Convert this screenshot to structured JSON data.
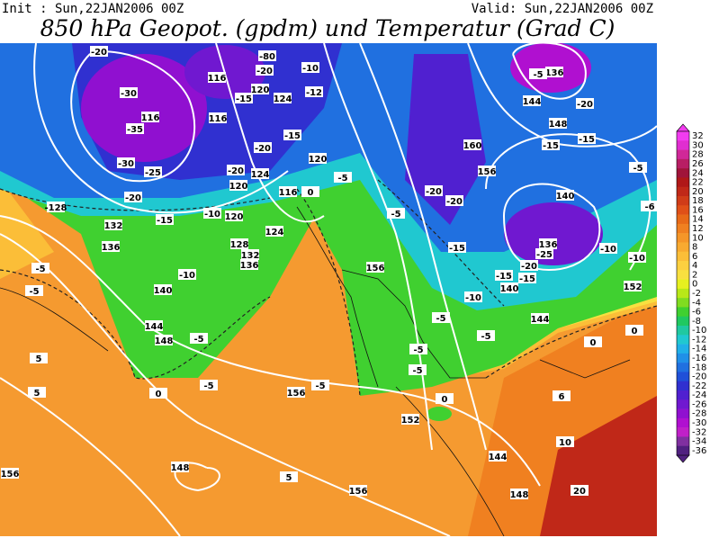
{
  "header": {
    "init": "Init : Sun,22JAN2006 00Z",
    "valid": "Valid: Sun,22JAN2006 00Z",
    "title": "850 hPa Geopot. (gpdm) und Temperatur (Grad C)"
  },
  "colorbar": [
    {
      "value": 32,
      "color": "#f23cf0"
    },
    {
      "value": 30,
      "color": "#e02ed0"
    },
    {
      "value": 28,
      "color": "#d02898"
    },
    {
      "value": 26,
      "color": "#b81e64"
    },
    {
      "value": 24,
      "color": "#a0143a"
    },
    {
      "value": 22,
      "color": "#b01818"
    },
    {
      "value": 20,
      "color": "#c02818"
    },
    {
      "value": 18,
      "color": "#d03c18"
    },
    {
      "value": 16,
      "color": "#e05018"
    },
    {
      "value": 14,
      "color": "#e86a18"
    },
    {
      "value": 12,
      "color": "#f08020"
    },
    {
      "value": 10,
      "color": "#f59628"
    },
    {
      "value": 8,
      "color": "#f8aa30"
    },
    {
      "value": 6,
      "color": "#fbbe38"
    },
    {
      "value": 4,
      "color": "#fcd040"
    },
    {
      "value": 2,
      "color": "#f8e040"
    },
    {
      "value": 0,
      "color": "#e6f020"
    },
    {
      "value": -2,
      "color": "#b8e818"
    },
    {
      "value": -4,
      "color": "#80dc20"
    },
    {
      "value": -6,
      "color": "#40d030"
    },
    {
      "value": -8,
      "color": "#20c860"
    },
    {
      "value": -10,
      "color": "#20c8a0"
    },
    {
      "value": -12,
      "color": "#20c8d0"
    },
    {
      "value": -14,
      "color": "#20b0e8"
    },
    {
      "value": -16,
      "color": "#2090e8"
    },
    {
      "value": -18,
      "color": "#2070e0"
    },
    {
      "value": -20,
      "color": "#2050d8"
    },
    {
      "value": -22,
      "color": "#3030d0"
    },
    {
      "value": -24,
      "color": "#5020d0"
    },
    {
      "value": -26,
      "color": "#7018d0"
    },
    {
      "value": -28,
      "color": "#9010d0"
    },
    {
      "value": -30,
      "color": "#b010d0"
    },
    {
      "value": -32,
      "color": "#c020c8"
    },
    {
      "value": -34,
      "color": "#8030a0"
    },
    {
      "value": -36,
      "color": "#502080"
    }
  ],
  "map": {
    "labels": [
      "-20",
      "-30",
      "116",
      "-35",
      "-30",
      "-25",
      "-20",
      "-128",
      "132",
      "-15",
      "136",
      "-5",
      "-5",
      "-10",
      "140",
      "144",
      "148",
      "-5",
      "5",
      "5",
      "0",
      "-5",
      "156",
      "-5",
      "156",
      "148",
      "5",
      "156",
      "148",
      "144",
      "152",
      "20",
      "10",
      "6",
      "0",
      "0",
      "152",
      "-10",
      "-10",
      "136",
      "-25",
      "-20",
      "140",
      "-15",
      "-10",
      "140",
      "-15",
      "148",
      "144",
      "-20",
      "136",
      "-5",
      "160",
      "156",
      "-20",
      "-20",
      "-15",
      "-5",
      "156",
      "-5",
      "-5",
      "144",
      "-5",
      "-5",
      "0",
      "-80",
      "-20",
      "-10",
      "-12",
      "116",
      "120",
      "124",
      "-15",
      "116",
      "-15",
      "-20",
      "120",
      "-20",
      "124",
      "120",
      "-5",
      "0",
      "116",
      "-10",
      "120",
      "124",
      "128",
      "132",
      "136",
      "-15",
      "-5",
      "-6",
      "-15"
    ]
  }
}
